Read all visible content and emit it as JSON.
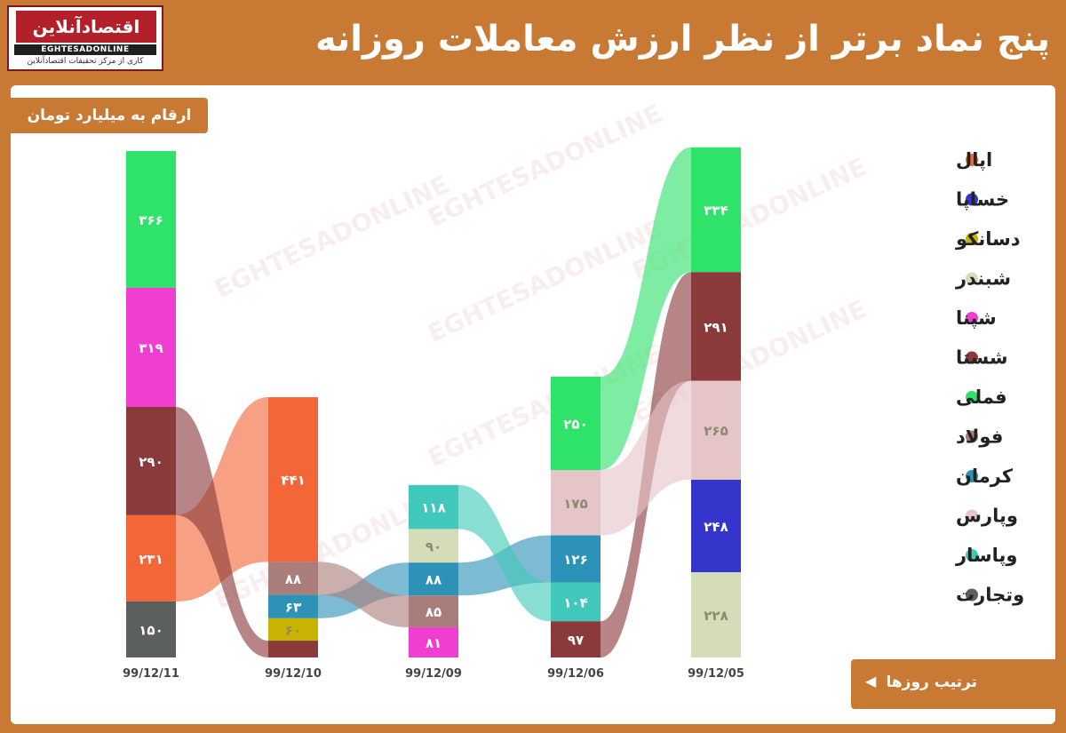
{
  "header": {
    "title": "پنج نماد برتر از نظر ارزش معاملات روزانه",
    "unit_note": "ارقام به میلیارد تومان",
    "order_note": "ترتیب روزها"
  },
  "logo": {
    "name_fa": "اقتصادآنلاین",
    "name_en": "EGHTESADONLINE",
    "tagline": "کاری از مرکز تحقیقات اقتصادآنلاین"
  },
  "colors": {
    "frame": "#c87933",
    "panel": "#ffffff"
  },
  "chart_data": {
    "type": "sankey",
    "title": "پنج نماد برتر از نظر ارزش معاملات روزانه",
    "unit": "ارقام به میلیارد تومان",
    "legend_position": "right",
    "legend": [
      {
        "name": "اپال",
        "color": "#f26638"
      },
      {
        "name": "خساپا",
        "color": "#3535cc"
      },
      {
        "name": "دسانکو",
        "color": "#c8b400"
      },
      {
        "name": "شبندر",
        "color": "#d4dcb8"
      },
      {
        "name": "شپنا",
        "color": "#f03ed0"
      },
      {
        "name": "شستا",
        "color": "#8a3a3a"
      },
      {
        "name": "فملی",
        "color": "#2ee26a"
      },
      {
        "name": "فولاد",
        "color": "#a97e7a"
      },
      {
        "name": "کرمان",
        "color": "#2c92b8"
      },
      {
        "name": "وپارس",
        "color": "#e5c5c8"
      },
      {
        "name": "وپاسار",
        "color": "#40c9ba"
      },
      {
        "name": "وتجارت",
        "color": "#5b5f60"
      }
    ],
    "days": [
      {
        "date": "99/12/11",
        "segments": [
          {
            "symbol": "فملی",
            "value": 366,
            "label": "۳۶۶"
          },
          {
            "symbol": "شپنا",
            "value": 319,
            "label": "۳۱۹"
          },
          {
            "symbol": "شستا",
            "value": 290,
            "label": "۲۹۰"
          },
          {
            "symbol": "اپال",
            "value": 231,
            "label": "۲۳۱"
          },
          {
            "symbol": "وتجارت",
            "value": 150,
            "label": "۱۵۰"
          }
        ]
      },
      {
        "date": "99/12/10",
        "segments": [
          {
            "symbol": "اپال",
            "value": 441,
            "label": "۴۴۱"
          },
          {
            "symbol": "فولاد",
            "value": 88,
            "label": "۸۸"
          },
          {
            "symbol": "کرمان",
            "value": 63,
            "label": "۶۳"
          },
          {
            "symbol": "دسانکو",
            "value": 60,
            "label": "۶۰"
          },
          {
            "symbol": "شستا",
            "value": 45,
            "label": ""
          }
        ]
      },
      {
        "date": "99/12/09",
        "segments": [
          {
            "symbol": "وپاسار",
            "value": 118,
            "label": "۱۱۸"
          },
          {
            "symbol": "شبندر",
            "value": 90,
            "label": "۹۰"
          },
          {
            "symbol": "کرمان",
            "value": 88,
            "label": "۸۸"
          },
          {
            "symbol": "فولاد",
            "value": 85,
            "label": "۸۵"
          },
          {
            "symbol": "شپنا",
            "value": 81,
            "label": "۸۱"
          }
        ]
      },
      {
        "date": "99/12/06",
        "segments": [
          {
            "symbol": "فملی",
            "value": 250,
            "label": "۲۵۰"
          },
          {
            "symbol": "وپارس",
            "value": 175,
            "label": "۱۷۵"
          },
          {
            "symbol": "کرمان",
            "value": 126,
            "label": "۱۲۶"
          },
          {
            "symbol": "وپاسار",
            "value": 104,
            "label": "۱۰۴"
          },
          {
            "symbol": "شستا",
            "value": 97,
            "label": "۹۷"
          }
        ]
      },
      {
        "date": "99/12/05",
        "segments": [
          {
            "symbol": "فملی",
            "value": 334,
            "label": "۳۳۴"
          },
          {
            "symbol": "شستا",
            "value": 291,
            "label": "۲۹۱"
          },
          {
            "symbol": "وپارس",
            "value": 265,
            "label": "۲۶۵"
          },
          {
            "symbol": "خساپا",
            "value": 248,
            "label": "۲۴۸"
          },
          {
            "symbol": "شبندر",
            "value": 228,
            "label": "۲۲۸"
          }
        ]
      }
    ]
  }
}
